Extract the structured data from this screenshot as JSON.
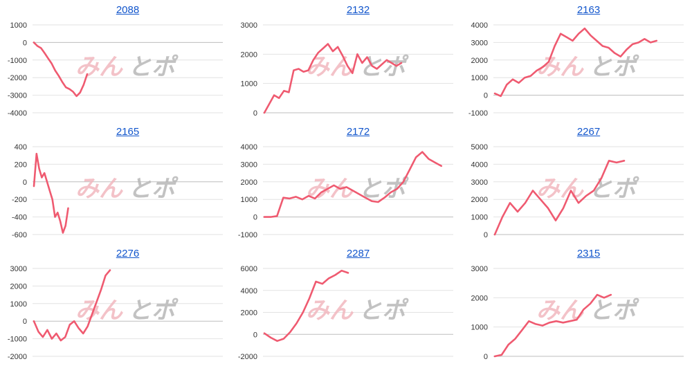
{
  "watermark": {
    "part1": "みん",
    "part2": "とポ"
  },
  "colors": {
    "series": "#ef5a70",
    "title_link": "#1155cc"
  },
  "chart_data": [
    {
      "type": "line",
      "title": "2088",
      "ylim": [
        -4000,
        1000
      ],
      "yticks": [
        -4000,
        -3000,
        -2000,
        -1000,
        0,
        1000
      ],
      "grid": true,
      "series": [
        {
          "values": [
            0,
            -200,
            -320,
            -600,
            -900,
            -1200,
            -1600,
            -1900,
            -2250,
            -2550,
            -2650,
            -2800,
            -3050,
            -2850,
            -2400,
            -1800
          ]
        }
      ]
    },
    {
      "type": "line",
      "title": "2132",
      "ylim": [
        0,
        3000
      ],
      "yticks": [
        0,
        1000,
        2000,
        3000
      ],
      "grid": true,
      "series": [
        {
          "values": [
            0,
            300,
            600,
            500,
            750,
            700,
            1450,
            1500,
            1400,
            1450,
            1800,
            2050,
            2200,
            2350,
            2100,
            2250,
            1950,
            1600,
            1350,
            2000,
            1700,
            1900,
            1600,
            1500,
            1650,
            1800,
            1700,
            1600,
            1700
          ]
        }
      ]
    },
    {
      "type": "line",
      "title": "2163",
      "ylim": [
        -1000,
        4000
      ],
      "yticks": [
        -1000,
        0,
        1000,
        2000,
        3000,
        4000
      ],
      "grid": true,
      "series": [
        {
          "values": [
            100,
            -50,
            600,
            900,
            700,
            1000,
            1100,
            1400,
            1600,
            1900,
            2800,
            3500,
            3300,
            3100,
            3500,
            3800,
            3400,
            3100,
            2800,
            2700,
            2400,
            2200,
            2600,
            2900,
            3000,
            3200,
            3000,
            3100
          ]
        }
      ]
    },
    {
      "type": "line",
      "title": "2165",
      "ylim": [
        -600,
        400
      ],
      "yticks": [
        -600,
        -400,
        -200,
        0,
        200,
        400
      ],
      "grid": true,
      "series": [
        {
          "values": [
            -50,
            320,
            150,
            50,
            100,
            0,
            -100,
            -200,
            -400,
            -350,
            -450,
            -580,
            -500,
            -300
          ]
        }
      ]
    },
    {
      "type": "line",
      "title": "2172",
      "ylim": [
        -1000,
        4000
      ],
      "yticks": [
        -1000,
        0,
        1000,
        2000,
        3000,
        4000
      ],
      "grid": true,
      "series": [
        {
          "values": [
            0,
            0,
            50,
            1100,
            1050,
            1150,
            1000,
            1200,
            1050,
            1400,
            1600,
            1800,
            1600,
            1700,
            1500,
            1300,
            1100,
            900,
            850,
            1100,
            1400,
            1600,
            2000,
            2700,
            3400,
            3700,
            3300,
            3100,
            2900
          ]
        }
      ]
    },
    {
      "type": "line",
      "title": "2267",
      "ylim": [
        0,
        5000
      ],
      "yticks": [
        0,
        1000,
        2000,
        3000,
        4000,
        5000
      ],
      "grid": true,
      "series": [
        {
          "values": [
            0,
            1000,
            1800,
            1300,
            1800,
            2500,
            2000,
            1500,
            800,
            1500,
            2500,
            1800,
            2200,
            2500,
            3200,
            4200,
            4100,
            4200
          ]
        }
      ]
    },
    {
      "type": "line",
      "title": "2276",
      "ylim": [
        -2000,
        3000
      ],
      "yticks": [
        -2000,
        -1000,
        0,
        1000,
        2000,
        3000
      ],
      "grid": true,
      "series": [
        {
          "values": [
            0,
            -600,
            -900,
            -500,
            -1000,
            -700,
            -1100,
            -900,
            -200,
            0,
            -400,
            -700,
            -300,
            400,
            1100,
            1800,
            2600,
            2900
          ]
        }
      ]
    },
    {
      "type": "line",
      "title": "2287",
      "ylim": [
        -2000,
        6000
      ],
      "yticks": [
        -2000,
        0,
        2000,
        4000,
        6000
      ],
      "grid": true,
      "series": [
        {
          "values": [
            100,
            -300,
            -600,
            -400,
            200,
            1000,
            2000,
            3300,
            4800,
            4600,
            5100,
            5400,
            5800,
            5600
          ]
        }
      ]
    },
    {
      "type": "line",
      "title": "2315",
      "ylim": [
        0,
        3000
      ],
      "yticks": [
        0,
        1000,
        2000,
        3000
      ],
      "grid": true,
      "series": [
        {
          "values": [
            0,
            50,
            400,
            600,
            900,
            1200,
            1100,
            1050,
            1150,
            1200,
            1150,
            1200,
            1250,
            1600,
            1800,
            2100,
            2000,
            2100
          ]
        }
      ]
    }
  ]
}
